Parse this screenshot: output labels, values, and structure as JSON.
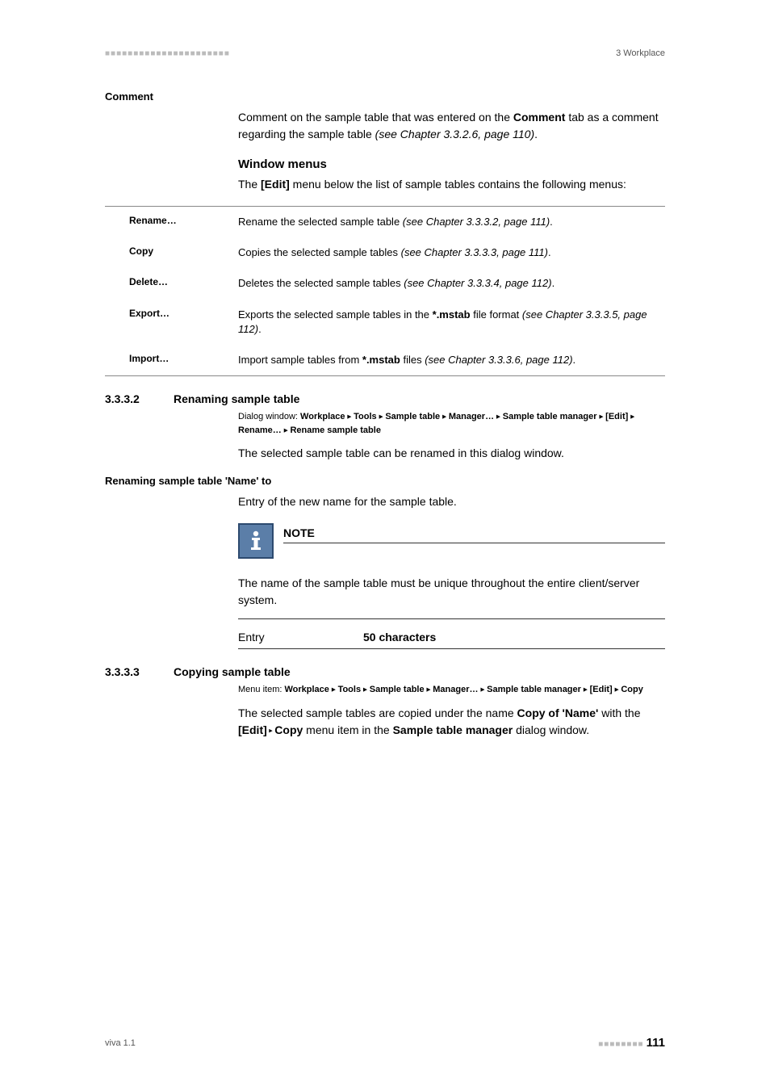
{
  "header": {
    "dots": "■■■■■■■■■■■■■■■■■■■■■■",
    "breadcrumb": "3 Workplace"
  },
  "comment_section": {
    "label": "Comment",
    "text_before": "Comment on the sample table that was entered on the ",
    "bold1": "Comment",
    "text_mid": " tab as a comment regarding the sample table ",
    "italic_ref": "(see Chapter 3.3.2.6, page 110)",
    "period": "."
  },
  "window_menus": {
    "title": "Window menus",
    "text_before": "The ",
    "bold1": "[Edit]",
    "text_after": " menu below the list of sample tables contains the following menus:"
  },
  "menu_items": [
    {
      "label": "Rename…",
      "desc_pre": "Rename the selected sample table ",
      "ref": "(see Chapter 3.3.3.2, page 111)",
      "post": "."
    },
    {
      "label": "Copy",
      "desc_pre": "Copies the selected sample tables ",
      "ref": "(see Chapter 3.3.3.3, page 111)",
      "post": "."
    },
    {
      "label": "Delete…",
      "desc_pre": "Deletes the selected sample tables ",
      "ref": "(see Chapter 3.3.3.4, page 112)",
      "post": "."
    },
    {
      "label": "Export…",
      "desc_pre": "Exports the selected sample tables in the ",
      "bold": "*.mstab",
      "mid": " file format ",
      "ref": "(see Chapter 3.3.3.5, page 112)",
      "post": "."
    },
    {
      "label": "Import…",
      "desc_pre": "Import sample tables from ",
      "bold": "*.mstab",
      "mid": " files ",
      "ref": "(see Chapter 3.3.3.6, page 112)",
      "post": "."
    }
  ],
  "sec3332": {
    "num": "3.3.3.2",
    "title": "Renaming sample table",
    "path_label": "Dialog window: ",
    "path": [
      "Workplace",
      "Tools",
      "Sample table",
      "Manager…",
      "Sample table manager",
      "[Edit]",
      "Rename…",
      "Rename sample table"
    ],
    "body": "The selected sample table can be renamed in this dialog window."
  },
  "rename_to": {
    "label": "Renaming sample table 'Name' to",
    "body": "Entry of the new name for the sample table."
  },
  "note": {
    "title": "NOTE",
    "body": "The name of the sample table must be unique throughout the entire client/server system."
  },
  "entry": {
    "label": "Entry",
    "value": "50 characters"
  },
  "sec3333": {
    "num": "3.3.3.3",
    "title": "Copying sample table",
    "path_label": "Menu item: ",
    "path": [
      "Workplace",
      "Tools",
      "Sample table",
      "Manager…",
      "Sample table manager",
      "[Edit]",
      "Copy"
    ],
    "body_pre": "The selected sample tables are copied under the name ",
    "bold1": "Copy of 'Name'",
    "body_mid": " with the ",
    "bold2": "[Edit]",
    "tri": " ▸ ",
    "bold3": "Copy",
    "body_mid2": " menu item in the ",
    "bold4": "Sample table manager",
    "body_end": " dialog window."
  },
  "footer": {
    "left": "viva 1.1",
    "dots": "■■■■■■■■",
    "page": "111"
  }
}
